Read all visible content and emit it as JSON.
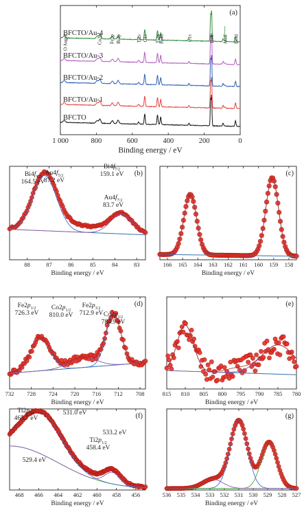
{
  "chart_data": [
    {
      "id": "a",
      "type": "line",
      "panel_label": "(a)",
      "xlabel": "Binding energy / eV",
      "xlim": [
        1000,
        0
      ],
      "xticks": [
        1000,
        800,
        600,
        400,
        200,
        0
      ],
      "xtick_labels": [
        "1 000",
        "800",
        "600",
        "400",
        "200",
        "0"
      ],
      "series": [
        {
          "name": "BFCTO",
          "color": "#111111"
        },
        {
          "name": "BFCTO/Au-1",
          "color": "#e3403a"
        },
        {
          "name": "BFCTO/Au-2",
          "color": "#2e5fb5"
        },
        {
          "name": "BFCTO/Au-3",
          "color": "#b45bbf"
        },
        {
          "name": "BFCTO/Au-4",
          "color": "#2e8b3a"
        }
      ],
      "peak_labels": [
        {
          "text": "O Auger",
          "x": 975
        },
        {
          "text": "Co2p",
          "x": 785
        },
        {
          "text": "Fe2p",
          "x": 715
        },
        {
          "text": "Bi4p",
          "x": 680
        },
        {
          "text": "Ti2s",
          "x": 565
        },
        {
          "text": "O1s",
          "x": 531
        },
        {
          "text": "Ti2p",
          "x": 460
        },
        {
          "text": "Bi4d",
          "x": 440
        },
        {
          "text": "C1s",
          "x": 285
        },
        {
          "text": "Bi4f",
          "x": 160
        },
        {
          "text": "Au4f",
          "x": 85
        },
        {
          "text": "Bi5d",
          "x": 25
        }
      ]
    },
    {
      "id": "b",
      "type": "scatter",
      "panel_label": "(b)",
      "xlabel": "Binding energy / eV",
      "xlim": [
        88.8,
        82.6
      ],
      "xticks": [
        88,
        87,
        86,
        85,
        84,
        83
      ],
      "annotations": [
        {
          "lines": [
            "Au4f5/2",
            "87.2 eV"
          ],
          "x": 87.2
        },
        {
          "lines": [
            "Au4f7/2",
            "83.7 eV"
          ],
          "x": 83.7
        }
      ]
    },
    {
      "id": "c",
      "type": "scatter",
      "panel_label": "(c)",
      "xlabel": "Binding energy / eV",
      "xlim": [
        166.5,
        157.5
      ],
      "xticks": [
        166,
        165,
        164,
        163,
        162,
        161,
        160,
        159,
        158
      ],
      "annotations": [
        {
          "lines": [
            "Bi4f5/2",
            "164.5 eV"
          ],
          "x": 164.5
        },
        {
          "lines": [
            "Bi4f7/2",
            "159.1 eV"
          ],
          "x": 159.1
        }
      ]
    },
    {
      "id": "d",
      "type": "scatter",
      "panel_label": "(d)",
      "xlabel": "Binding energy / eV",
      "xlim": [
        732,
        707
      ],
      "xticks": [
        732,
        728,
        724,
        720,
        716,
        712,
        708
      ],
      "annotations": [
        {
          "lines": [
            "Fe2p1/2",
            "726.3 eV"
          ],
          "x": 726.3
        },
        {
          "lines": [
            "Fe2p3/2",
            "712.9 eV"
          ],
          "x": 712.9
        }
      ]
    },
    {
      "id": "e",
      "type": "scatter",
      "panel_label": "(e)",
      "xlabel": "Binding energy / eV",
      "xlim": [
        815,
        780
      ],
      "xticks": [
        815,
        810,
        805,
        800,
        795,
        790,
        785,
        780
      ],
      "annotations": [
        {
          "lines": [
            "Co2p1/2",
            "810.0 eV"
          ],
          "x": 810.0
        },
        {
          "lines": [
            "Co2p3/2",
            "784.9 eV"
          ],
          "x": 784.9
        }
      ]
    },
    {
      "id": "f",
      "type": "scatter",
      "panel_label": "(f)",
      "xlabel": "Binding energy / eV",
      "xlim": [
        469,
        455
      ],
      "xticks": [
        468,
        466,
        464,
        462,
        460,
        458,
        456
      ],
      "annotations": [
        {
          "lines": [
            "Ti2p3/2",
            "465.7 eV"
          ],
          "x": 465.7
        },
        {
          "lines": [
            "Ti2p1/2",
            "458.4 eV"
          ],
          "x": 458.4
        }
      ]
    },
    {
      "id": "g",
      "type": "scatter",
      "panel_label": "(g)",
      "xlabel": "Binding energy / eV",
      "xlim": [
        536,
        527
      ],
      "xticks": [
        536,
        535,
        534,
        533,
        532,
        531,
        530,
        529,
        528,
        527
      ],
      "annotations": [
        {
          "lines": [
            "531.0 eV"
          ],
          "x": 531.0
        },
        {
          "lines": [
            "533.2 eV"
          ],
          "x": 528.9
        },
        {
          "lines": [
            "529.4 eV"
          ],
          "x": 532.8
        }
      ]
    }
  ]
}
